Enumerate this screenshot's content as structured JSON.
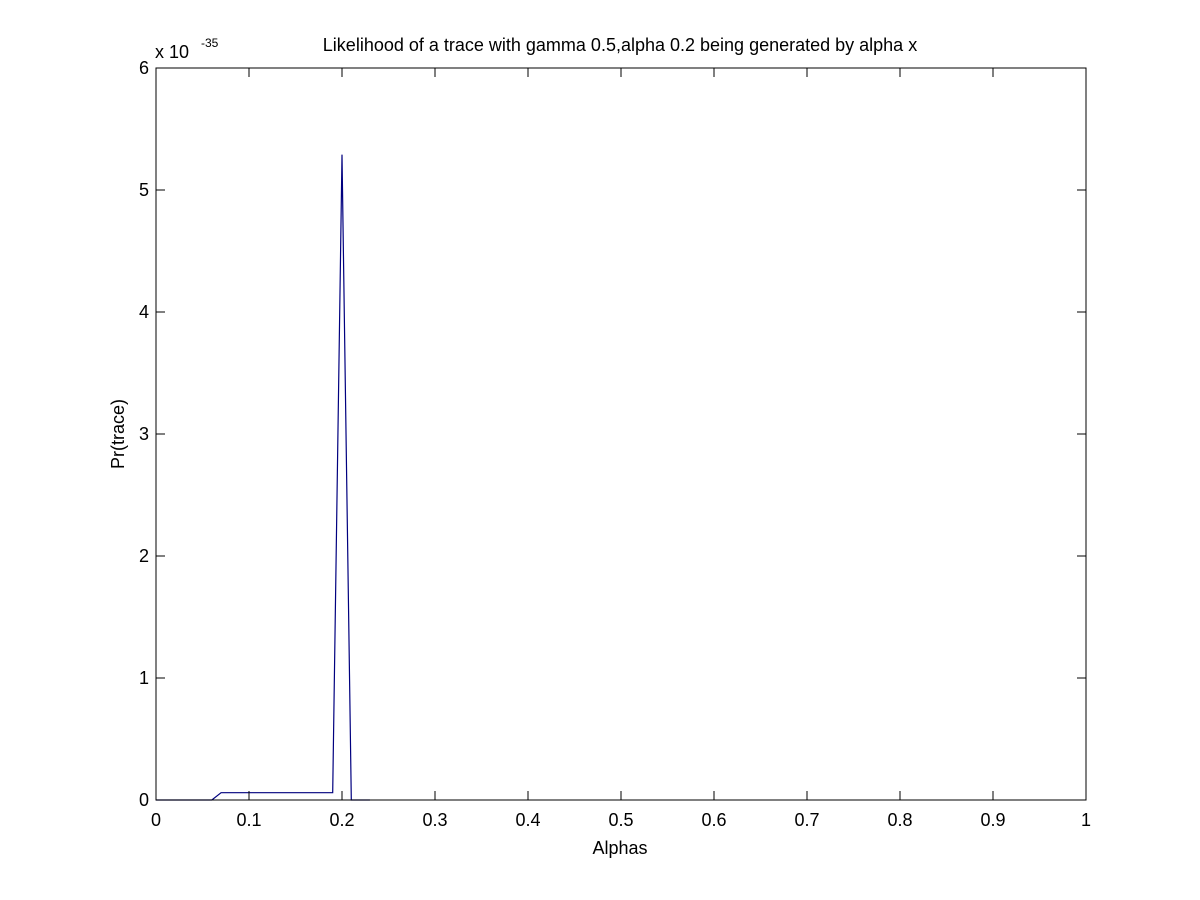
{
  "chart_data": {
    "type": "line",
    "title": "Likelihood of a trace with gamma 0.5,alpha 0.2 being generated by alpha x",
    "xlabel": "Alphas",
    "ylabel": "Pr(trace)",
    "y_exponent_label": {
      "base": "x 10",
      "power": "-35"
    },
    "xlim": [
      0,
      1
    ],
    "ylim": [
      0,
      6
    ],
    "grid": false,
    "legend": "none",
    "x_ticks": [
      0,
      0.1,
      0.2,
      0.3,
      0.4,
      0.5,
      0.6,
      0.7,
      0.8,
      0.9,
      1
    ],
    "x_tick_labels": [
      "0",
      "0.1",
      "0.2",
      "0.3",
      "0.4",
      "0.5",
      "0.6",
      "0.7",
      "0.8",
      "0.9",
      "1"
    ],
    "y_ticks": [
      0,
      1,
      2,
      3,
      4,
      5,
      6
    ],
    "y_tick_labels": [
      "0",
      "1",
      "2",
      "3",
      "4",
      "5",
      "6"
    ],
    "series": [
      {
        "color": "#00007f",
        "x": [
          0,
          0.01,
          0.02,
          0.03,
          0.04,
          0.05,
          0.06,
          0.07,
          0.08,
          0.09,
          0.1,
          0.11,
          0.12,
          0.13,
          0.14,
          0.15,
          0.16,
          0.17,
          0.18,
          0.19,
          0.2,
          0.21,
          0.22,
          0.23
        ],
        "y": [
          0,
          0,
          0,
          0,
          0,
          0,
          0,
          0.06,
          0.06,
          0.06,
          0.06,
          0.06,
          0.06,
          0.06,
          0.06,
          0.06,
          0.06,
          0.06,
          0.06,
          0.06,
          5.29,
          0,
          0,
          0
        ]
      }
    ]
  }
}
